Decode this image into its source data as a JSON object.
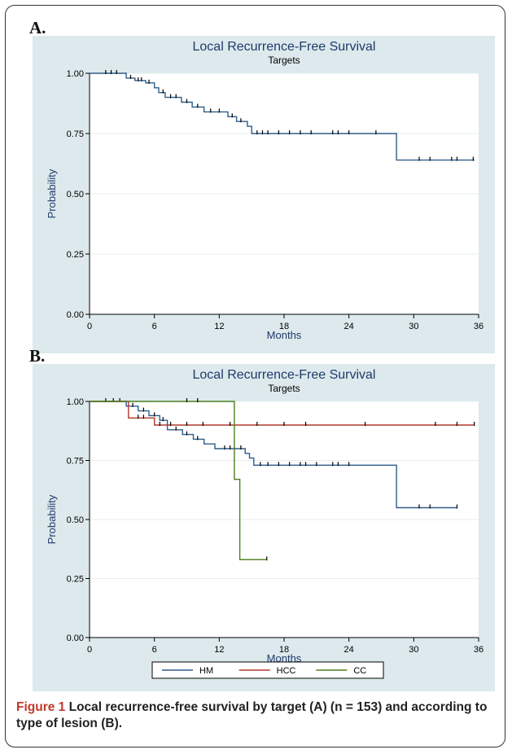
{
  "panels": [
    {
      "label": "A."
    },
    {
      "label": "B."
    }
  ],
  "caption": {
    "figure_label": "Figure 1",
    "text": "Local recurrence-free survival by target (A) (n = 153) and according to type of lesion (B)."
  },
  "colors": {
    "plot_background": "#dde9ec",
    "title_text": "#1f3a6b",
    "HM": "#2f5d8a",
    "HCC": "#b03a2e",
    "CC": "#4d7f1e",
    "A_line": "#2f5d8a"
  },
  "chart_data": [
    {
      "type": "line",
      "title": "Local Recurrence-Free Survival",
      "subtitle": "Targets",
      "xlabel": "Months",
      "ylabel": "Probability",
      "xlim": [
        0,
        36
      ],
      "ylim": [
        0,
        1
      ],
      "xticks": [
        "0",
        "6",
        "12",
        "18",
        "24",
        "30",
        "36"
      ],
      "yticks": [
        "0.00",
        "0.25",
        "0.50",
        "0.75",
        "1.00"
      ],
      "grid": true,
      "series": [
        {
          "steps": [
            [
              0,
              1.0
            ],
            [
              3.2,
              1.0
            ],
            [
              3.4,
              0.98
            ],
            [
              4.2,
              0.97
            ],
            [
              5.2,
              0.96
            ],
            [
              6.0,
              0.94
            ],
            [
              6.4,
              0.92
            ],
            [
              7.0,
              0.9
            ],
            [
              8.5,
              0.88
            ],
            [
              9.5,
              0.86
            ],
            [
              10.6,
              0.84
            ],
            [
              12.8,
              0.82
            ],
            [
              13.6,
              0.8
            ],
            [
              14.6,
              0.78
            ],
            [
              15.0,
              0.75
            ],
            [
              28.4,
              0.75
            ],
            [
              28.4,
              0.64
            ],
            [
              35.6,
              0.64
            ]
          ],
          "censored": [
            [
              1.5,
              1.0
            ],
            [
              2.0,
              1.0
            ],
            [
              2.5,
              1.0
            ],
            [
              3.8,
              0.98
            ],
            [
              4.5,
              0.97
            ],
            [
              4.8,
              0.97
            ],
            [
              5.5,
              0.96
            ],
            [
              6.8,
              0.92
            ],
            [
              7.5,
              0.9
            ],
            [
              8.0,
              0.9
            ],
            [
              9.0,
              0.88
            ],
            [
              10.0,
              0.86
            ],
            [
              11.2,
              0.84
            ],
            [
              12.0,
              0.84
            ],
            [
              13.2,
              0.82
            ],
            [
              14.0,
              0.8
            ],
            [
              15.5,
              0.75
            ],
            [
              16.0,
              0.75
            ],
            [
              16.5,
              0.75
            ],
            [
              17.5,
              0.75
            ],
            [
              18.5,
              0.75
            ],
            [
              19.5,
              0.75
            ],
            [
              20.5,
              0.75
            ],
            [
              22.5,
              0.75
            ],
            [
              23.0,
              0.75
            ],
            [
              24.0,
              0.75
            ],
            [
              26.5,
              0.75
            ],
            [
              30.5,
              0.64
            ],
            [
              31.5,
              0.64
            ],
            [
              33.5,
              0.64
            ],
            [
              34.0,
              0.64
            ],
            [
              35.5,
              0.64
            ]
          ]
        }
      ]
    },
    {
      "type": "line",
      "title": "Local Recurrence-Free Survival",
      "subtitle": "Targets",
      "xlabel": "Months",
      "ylabel": "Probability",
      "xlim": [
        0,
        36
      ],
      "ylim": [
        0,
        1
      ],
      "xticks": [
        "0",
        "6",
        "12",
        "18",
        "24",
        "30",
        "36"
      ],
      "yticks": [
        "0.00",
        "0.25",
        "0.50",
        "0.75",
        "1.00"
      ],
      "grid": true,
      "legend": "bottom",
      "series": [
        {
          "name": "HM",
          "steps": [
            [
              0,
              1.0
            ],
            [
              3.2,
              1.0
            ],
            [
              3.4,
              0.98
            ],
            [
              4.5,
              0.96
            ],
            [
              5.5,
              0.94
            ],
            [
              6.5,
              0.92
            ],
            [
              7.2,
              0.88
            ],
            [
              8.6,
              0.86
            ],
            [
              9.6,
              0.84
            ],
            [
              10.6,
              0.82
            ],
            [
              11.6,
              0.8
            ],
            [
              14.4,
              0.78
            ],
            [
              14.8,
              0.76
            ],
            [
              15.2,
              0.73
            ],
            [
              28.4,
              0.73
            ],
            [
              28.4,
              0.55
            ],
            [
              34.0,
              0.55
            ]
          ],
          "censored": [
            [
              1.5,
              1.0
            ],
            [
              2.2,
              1.0
            ],
            [
              2.8,
              1.0
            ],
            [
              4.0,
              0.98
            ],
            [
              5.0,
              0.96
            ],
            [
              6.0,
              0.94
            ],
            [
              6.8,
              0.92
            ],
            [
              8.0,
              0.88
            ],
            [
              9.0,
              0.86
            ],
            [
              10.0,
              0.84
            ],
            [
              12.5,
              0.8
            ],
            [
              13.0,
              0.8
            ],
            [
              14.0,
              0.8
            ],
            [
              15.8,
              0.73
            ],
            [
              16.5,
              0.73
            ],
            [
              17.5,
              0.73
            ],
            [
              18.5,
              0.73
            ],
            [
              19.5,
              0.73
            ],
            [
              20.0,
              0.73
            ],
            [
              21.0,
              0.73
            ],
            [
              22.5,
              0.73
            ],
            [
              23.0,
              0.73
            ],
            [
              24.0,
              0.73
            ],
            [
              30.5,
              0.55
            ],
            [
              31.5,
              0.55
            ],
            [
              34.0,
              0.55
            ]
          ]
        },
        {
          "name": "HCC",
          "steps": [
            [
              0,
              1.0
            ],
            [
              3.2,
              1.0
            ],
            [
              3.6,
              0.93
            ],
            [
              5.8,
              0.93
            ],
            [
              6.0,
              0.9
            ],
            [
              35.6,
              0.9
            ]
          ],
          "censored": [
            [
              4.5,
              0.93
            ],
            [
              5.0,
              0.93
            ],
            [
              6.5,
              0.9
            ],
            [
              7.5,
              0.9
            ],
            [
              9.0,
              0.9
            ],
            [
              10.5,
              0.9
            ],
            [
              13.0,
              0.9
            ],
            [
              15.5,
              0.9
            ],
            [
              18.0,
              0.9
            ],
            [
              20.0,
              0.9
            ],
            [
              25.5,
              0.9
            ],
            [
              32.0,
              0.9
            ],
            [
              34.0,
              0.9
            ],
            [
              35.6,
              0.9
            ]
          ]
        },
        {
          "name": "CC",
          "steps": [
            [
              0,
              1.0
            ],
            [
              13.4,
              1.0
            ],
            [
              13.4,
              0.67
            ],
            [
              13.9,
              0.67
            ],
            [
              13.9,
              0.33
            ],
            [
              16.4,
              0.33
            ]
          ],
          "censored": [
            [
              9.0,
              1.0
            ],
            [
              10.0,
              1.0
            ],
            [
              16.4,
              0.33
            ]
          ]
        }
      ]
    }
  ]
}
